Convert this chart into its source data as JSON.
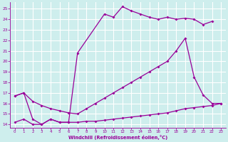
{
  "xlabel": "Windchill (Refroidissement éolien,°C)",
  "bg_color": "#ceeeed",
  "grid_color": "#b8e0e0",
  "line_color": "#990099",
  "xlim": [
    -0.5,
    23.5
  ],
  "ylim": [
    13.7,
    25.6
  ],
  "yticks": [
    14,
    15,
    16,
    17,
    18,
    19,
    20,
    21,
    22,
    23,
    24,
    25
  ],
  "xticks": [
    0,
    1,
    2,
    3,
    4,
    5,
    6,
    7,
    8,
    9,
    10,
    11,
    12,
    13,
    14,
    15,
    16,
    17,
    18,
    19,
    20,
    21,
    22,
    23
  ],
  "series": [
    {
      "x": [
        0,
        1,
        2,
        3,
        4,
        5,
        6,
        7,
        10,
        11,
        12,
        13,
        14,
        15,
        16,
        17,
        18,
        19,
        20,
        21,
        22
      ],
      "y": [
        16.7,
        17.0,
        14.5,
        14.0,
        14.5,
        14.2,
        14.2,
        20.8,
        24.5,
        24.2,
        25.2,
        24.8,
        24.5,
        24.2,
        24.0,
        24.2,
        24.0,
        24.1,
        24.0,
        23.5,
        23.8
      ]
    },
    {
      "comment": "middle rising diagonal: x=0 y~16.7, rises to x=19 y~22.2, then drops steeply to x=20 y~18.5, x=21 y~16.8, x=22 y~16, x=23 y~16",
      "x": [
        0,
        1,
        2,
        3,
        4,
        5,
        6,
        7,
        8,
        9,
        10,
        11,
        12,
        13,
        14,
        15,
        16,
        17,
        18,
        19,
        20,
        21,
        22,
        23
      ],
      "y": [
        16.7,
        17.0,
        16.2,
        15.8,
        15.5,
        15.3,
        15.1,
        15.0,
        15.5,
        16.0,
        16.5,
        17.0,
        17.5,
        18.0,
        18.5,
        19.0,
        19.5,
        20.0,
        21.0,
        22.2,
        18.5,
        16.8,
        16.0,
        16.0
      ]
    },
    {
      "x": [
        0,
        1,
        2,
        3,
        4,
        5,
        6,
        7,
        8,
        9,
        10,
        11,
        12,
        13,
        14,
        15,
        16,
        17,
        18,
        19,
        20,
        21,
        22,
        23
      ],
      "y": [
        14.2,
        14.5,
        14.0,
        14.0,
        14.5,
        14.2,
        14.2,
        14.2,
        14.3,
        14.3,
        14.4,
        14.5,
        14.6,
        14.7,
        14.8,
        14.9,
        15.0,
        15.1,
        15.3,
        15.5,
        15.6,
        15.7,
        15.8,
        16.0
      ]
    }
  ]
}
